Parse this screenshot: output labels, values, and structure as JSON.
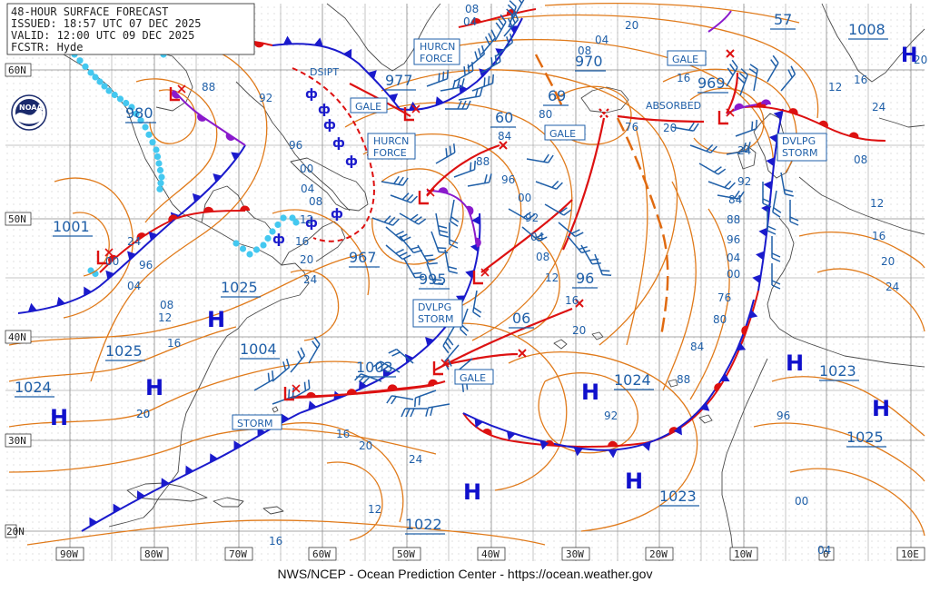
{
  "header": {
    "lines": [
      "48-HOUR SURFACE FORECAST",
      "ISSUED: 18:57 UTC 07 DEC 2025",
      "VALID:  12:00 UTC 09 DEC 2025",
      "FCSTR:  Hyde"
    ]
  },
  "credit": "NWS/NCEP - Ocean Prediction Center - https://ocean.weather.gov",
  "logo_text": "NOAA",
  "colors": {
    "isobar": "#e07a1a",
    "pressure_label": "#1f5fa8",
    "cold_front": "#1a1acc",
    "warm_front": "#dd1111",
    "occluded": "#8a1acc",
    "high": "#1010cc",
    "low": "#dd1111",
    "ice": "#44c8f0",
    "grid": "#8a8a8a"
  },
  "lon_labels": [
    "90W",
    "80W",
    "70W",
    "60W",
    "50W",
    "40W",
    "30W",
    "20W",
    "10W",
    "0",
    "10E"
  ],
  "lat_labels": [
    "60N",
    "50N",
    "40N",
    "30N",
    "20N"
  ],
  "highs": [
    {
      "label": "H",
      "value": "1025"
    },
    {
      "label": "H",
      "value": "1024"
    },
    {
      "label": "H",
      "value": "1024"
    },
    {
      "label": "H",
      "value": "1023"
    },
    {
      "label": "H",
      "value": "1025"
    },
    {
      "label": "H",
      "value": "1023"
    },
    {
      "label": "H",
      "value": "1022"
    },
    {
      "label": "H",
      "value": "1008"
    }
  ],
  "central_pressures": [
    "980",
    "977",
    "970",
    "969",
    "57",
    "60",
    "69",
    "96",
    "06",
    "967",
    "995",
    "1001",
    "1003",
    "1004",
    "1025"
  ],
  "boxes": [
    "HURCN FORCE",
    "GALE",
    "HURCN FORCE",
    "GALE",
    "GALE",
    "DVLPG STORM",
    "DVLPG STORM",
    "GALE",
    "STORM"
  ],
  "texts": [
    "DSIPT",
    "ABSORBED"
  ],
  "isobar_labels": [
    "08",
    "04",
    "92",
    "88",
    "84",
    "80",
    "76",
    "96",
    "00",
    "04",
    "08",
    "12",
    "16",
    "20",
    "24",
    "88",
    "96",
    "00",
    "92",
    "04",
    "08",
    "12",
    "16",
    "20",
    "24",
    "00",
    "96",
    "04",
    "08",
    "12",
    "16",
    "20",
    "20",
    "16",
    "20",
    "24",
    "12",
    "16",
    "20",
    "04",
    "08",
    "12",
    "16",
    "20",
    "24",
    "16",
    "20",
    "24",
    "92",
    "84",
    "88",
    "96",
    "04",
    "00",
    "76",
    "80",
    "84",
    "88",
    "92",
    "96",
    "00",
    "04",
    "08",
    "12",
    "16",
    "20",
    "24"
  ]
}
